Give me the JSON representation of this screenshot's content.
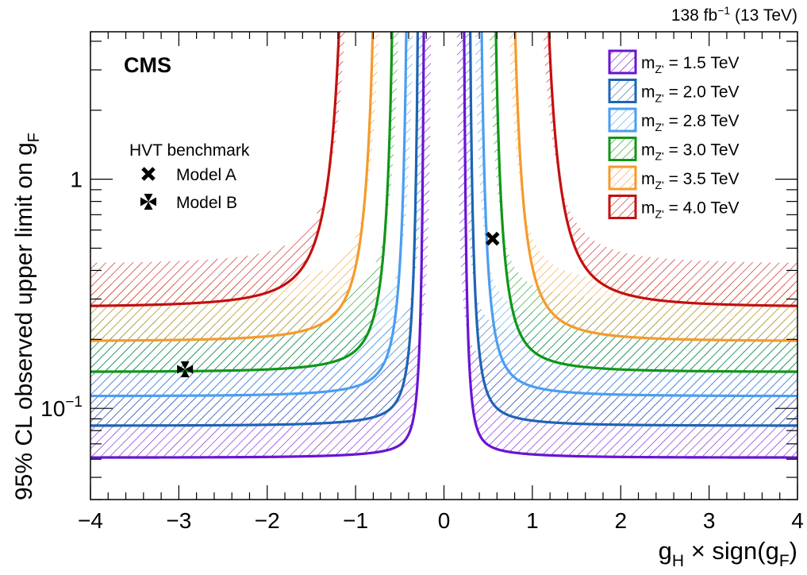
{
  "header": {
    "lumi": "138 fb",
    "lumi_exp": "−1",
    "energy": " (13 TeV)"
  },
  "chart_data": {
    "type": "line",
    "experiment": "CMS",
    "xlabel": {
      "main": "g",
      "sub": "H",
      "rest": " × sign(g",
      "sub2": "F",
      "close": ")"
    },
    "ylabel": {
      "main": "95% CL observed upper limit on g",
      "sub": "F"
    },
    "xlim": [
      -4,
      4
    ],
    "ylim": [
      0.04,
      4.4
    ],
    "yscale": "log",
    "x_ticks": [
      "−4",
      "−3",
      "−2",
      "−1",
      "0",
      "1",
      "2",
      "3",
      "4"
    ],
    "y_ticks": [
      {
        "value": 1,
        "base": "1",
        "exp": ""
      },
      {
        "value": 0.1,
        "base": "10",
        "exp": "−1"
      }
    ],
    "grid": false,
    "legend_position": "top-right",
    "benchmark_title": "HVT benchmark",
    "benchmarks": [
      {
        "name": "Model A",
        "x": 0.55,
        "y": 0.55,
        "marker": "x-cross"
      },
      {
        "name": "Model B",
        "x": -2.93,
        "y": 0.148,
        "marker": "maltese-cross"
      }
    ],
    "series": [
      {
        "name": "m",
        "sub": "Z'",
        "label_rest": " = 1.5 TeV",
        "color": "#6a14d4",
        "plateau": 0.061,
        "xmin": 0.22,
        "y_at_xmin": 4.4,
        "neck": 0.3,
        "hatch_extra": 0.015
      },
      {
        "name": "m",
        "sub": "Z'",
        "label_rest": " = 2.0 TeV",
        "color": "#1e64b4",
        "plateau": 0.084,
        "xmin": 0.28,
        "y_at_xmin": 4.4,
        "neck": 0.45,
        "hatch_extra": 0.02
      },
      {
        "name": "m",
        "sub": "Z'",
        "label_rest": " = 2.8 TeV",
        "color": "#4a9ef0",
        "plateau": 0.113,
        "xmin": 0.4,
        "y_at_xmin": 4.4,
        "neck": 0.6,
        "hatch_extra": 0.022
      },
      {
        "name": "m",
        "sub": "Z'",
        "label_rest": " = 3.0 TeV",
        "color": "#109618",
        "plateau": 0.144,
        "xmin": 0.55,
        "y_at_xmin": 4.4,
        "neck": 0.75,
        "hatch_extra": 0.025
      },
      {
        "name": "m",
        "sub": "Z'",
        "label_rest": " = 3.5 TeV",
        "color": "#f59a2c",
        "plateau": 0.196,
        "xmin": 0.75,
        "y_at_xmin": 4.4,
        "neck": 0.95,
        "hatch_extra": 0.025
      },
      {
        "name": "m",
        "sub": "Z'",
        "label_rest": " = 4.0 TeV",
        "color": "#c40f0f",
        "plateau": 0.276,
        "xmin": 1.1,
        "y_at_xmin": 4.4,
        "neck": 1.25,
        "hatch_extra": 0.025
      }
    ]
  }
}
